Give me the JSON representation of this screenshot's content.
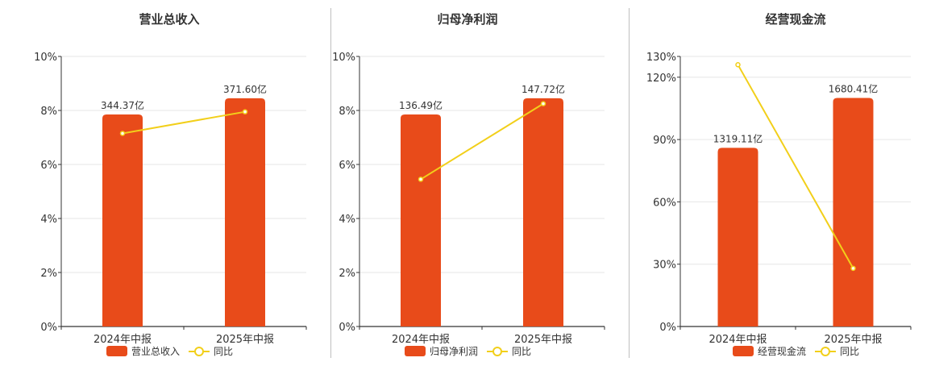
{
  "colors": {
    "bar": "#e84b1a",
    "line": "#f2cf1a",
    "axis": "#333333",
    "grid": "#e6e6e6",
    "text": "#333333"
  },
  "legend_icons": {
    "bar": "rounded-rect-swatch",
    "line": "line-with-circle-marker"
  },
  "chart_data": [
    {
      "type": "bar",
      "title": "营业总收入",
      "categories": [
        "2024年中报",
        "2025年中报"
      ],
      "y_ticks": [
        "0%",
        "2%",
        "4%",
        "6%",
        "8%",
        "10%"
      ],
      "ylim": [
        0,
        10
      ],
      "grid": true,
      "legend_position": "bottom",
      "series": [
        {
          "name": "营业总收入",
          "type": "bar",
          "values": [
            7.85,
            8.45
          ],
          "labels": [
            "344.37亿",
            "371.60亿"
          ]
        },
        {
          "name": "同比",
          "type": "line",
          "values": [
            7.15,
            7.95
          ]
        }
      ]
    },
    {
      "type": "bar",
      "title": "归母净利润",
      "categories": [
        "2024年中报",
        "2025年中报"
      ],
      "y_ticks": [
        "0%",
        "2%",
        "4%",
        "6%",
        "8%",
        "10%"
      ],
      "ylim": [
        0,
        10
      ],
      "grid": true,
      "legend_position": "bottom",
      "series": [
        {
          "name": "归母净利润",
          "type": "bar",
          "values": [
            7.85,
            8.45
          ],
          "labels": [
            "136.49亿",
            "147.72亿"
          ]
        },
        {
          "name": "同比",
          "type": "line",
          "values": [
            5.45,
            8.25
          ]
        }
      ]
    },
    {
      "type": "bar",
      "title": "经营现金流",
      "categories": [
        "2024年中报",
        "2025年中报"
      ],
      "y_ticks": [
        "0%",
        "30%",
        "60%",
        "90%",
        "120%",
        "130%"
      ],
      "y_tick_values": [
        0,
        30,
        60,
        90,
        120,
        130
      ],
      "ylim": [
        0,
        130
      ],
      "grid": true,
      "legend_position": "bottom",
      "series": [
        {
          "name": "经营现金流",
          "type": "bar",
          "values": [
            86,
            110
          ],
          "labels": [
            "1319.11亿",
            "1680.41亿"
          ]
        },
        {
          "name": "同比",
          "type": "line",
          "values": [
            126,
            28
          ]
        }
      ]
    }
  ]
}
